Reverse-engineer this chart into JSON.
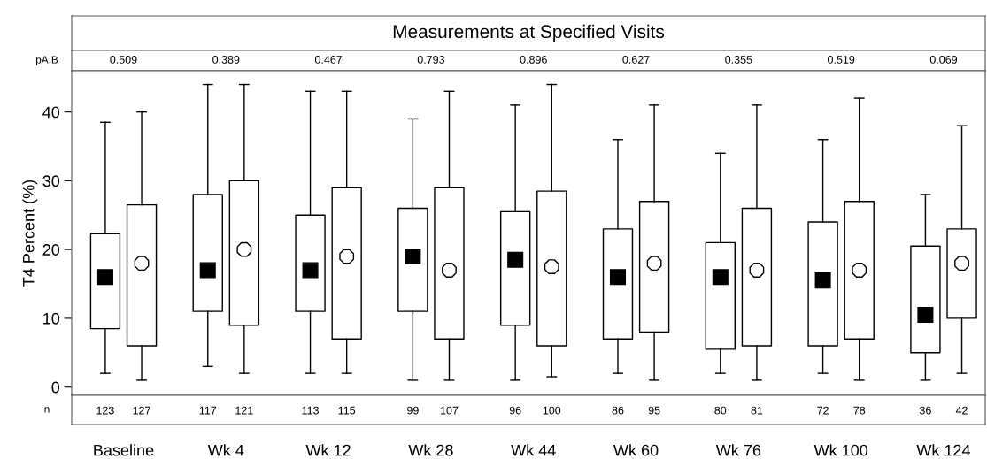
{
  "chart_data": {
    "type": "box",
    "title": "Measurements at Specified Visits",
    "ylabel": "T4 Percent (%)",
    "categories": [
      "Baseline",
      "Wk 4",
      "Wk 12",
      "Wk 28",
      "Wk 44",
      "Wk 60",
      "Wk 76",
      "Wk 100",
      "Wk 124"
    ],
    "series": [
      {
        "color": "#000000",
        "marker": "square",
        "value_labels": [
          "123",
          "117",
          "113",
          "99",
          "96",
          "86",
          "80",
          "72",
          "36"
        ],
        "boxes": [
          {
            "low": 2,
            "q1": 8.5,
            "median": 16,
            "q3": 22.3,
            "high": 38.5
          },
          {
            "low": 3,
            "q1": 11,
            "median": 17,
            "q3": 28,
            "high": 44
          },
          {
            "low": 2,
            "q1": 11,
            "median": 17,
            "q3": 25,
            "high": 43
          },
          {
            "low": 1,
            "q1": 11,
            "median": 19,
            "q3": 26,
            "high": 39
          },
          {
            "low": 1,
            "q1": 9,
            "median": 18.5,
            "q3": 25.5,
            "high": 41
          },
          {
            "low": 2,
            "q1": 7,
            "median": 16,
            "q3": 23,
            "high": 36
          },
          {
            "low": 2,
            "q1": 5.5,
            "median": 16,
            "q3": 21,
            "high": 34
          },
          {
            "low": 2,
            "q1": 6,
            "median": 15.5,
            "q3": 24,
            "high": 36
          },
          {
            "low": 1,
            "q1": 5,
            "median": 10.5,
            "q3": 20.5,
            "high": 28
          }
        ]
      },
      {
        "color": "#000000",
        "marker": "circle",
        "value_labels": [
          "127",
          "121",
          "115",
          "107",
          "100",
          "95",
          "81",
          "78",
          "42"
        ],
        "boxes": [
          {
            "low": 1,
            "q1": 6,
            "median": 18,
            "q3": 26.5,
            "high": 40
          },
          {
            "low": 2,
            "q1": 9,
            "median": 20,
            "q3": 30,
            "high": 44
          },
          {
            "low": 2,
            "q1": 7,
            "median": 19,
            "q3": 29,
            "high": 43
          },
          {
            "low": 1,
            "q1": 7,
            "median": 17,
            "q3": 29,
            "high": 43
          },
          {
            "low": 1.5,
            "q1": 6,
            "median": 17.5,
            "q3": 28.5,
            "high": 44
          },
          {
            "low": 1,
            "q1": 8,
            "median": 18,
            "q3": 27,
            "high": 41
          },
          {
            "low": 1,
            "q1": 6,
            "median": 17,
            "q3": 26,
            "high": 41
          },
          {
            "low": 1,
            "q1": 7,
            "median": 17,
            "q3": 27,
            "high": 42
          },
          {
            "low": 2,
            "q1": 10,
            "median": 18,
            "q3": 23,
            "high": 38
          }
        ]
      }
    ],
    "ylim": [
      -1.2,
      46
    ],
    "yticks": [
      0,
      10,
      20,
      30,
      40
    ],
    "grid": false,
    "legend": false,
    "annotations": [
      "pA.B",
      "0.509",
      "0.389",
      "0.467",
      "0.793",
      "0.896",
      "0.627",
      "0.355",
      "0.519",
      "0.069",
      "n"
    ]
  }
}
